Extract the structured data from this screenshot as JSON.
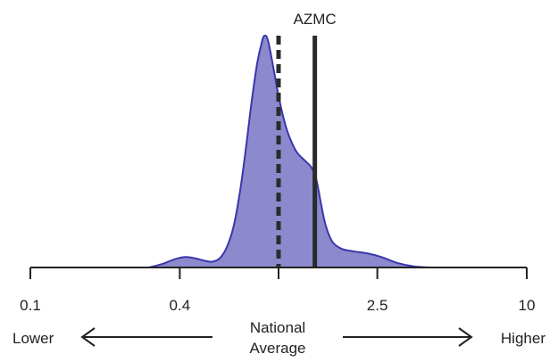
{
  "chart_data": {
    "type": "area",
    "scale": "log",
    "xlim": [
      0.1,
      10
    ],
    "ticks": [
      {
        "value": 0.1,
        "label": "0.1"
      },
      {
        "value": 0.4,
        "label": "0.4"
      },
      {
        "value": 1,
        "label": ""
      },
      {
        "value": 2.5,
        "label": "2.5"
      },
      {
        "value": 10,
        "label": "10"
      }
    ],
    "density": {
      "x": [
        0.3,
        0.34,
        0.38,
        0.42,
        0.46,
        0.5,
        0.54,
        0.58,
        0.62,
        0.66,
        0.7,
        0.74,
        0.78,
        0.82,
        0.86,
        0.88,
        0.9,
        0.92,
        0.95,
        1.0,
        1.05,
        1.1,
        1.18,
        1.28,
        1.36,
        1.42,
        1.48,
        1.55,
        1.65,
        1.8,
        2.0,
        2.3,
        2.6,
        3.0,
        3.5,
        4.1
      ],
      "y": [
        0.0,
        0.015,
        0.035,
        0.045,
        0.04,
        0.03,
        0.025,
        0.04,
        0.09,
        0.18,
        0.33,
        0.52,
        0.72,
        0.88,
        0.98,
        1.0,
        0.99,
        0.95,
        0.87,
        0.74,
        0.64,
        0.57,
        0.5,
        0.46,
        0.43,
        0.38,
        0.28,
        0.18,
        0.11,
        0.08,
        0.07,
        0.06,
        0.045,
        0.02,
        0.005,
        0.0
      ]
    },
    "reference_lines": [
      {
        "value": 1.0,
        "style": "dashed",
        "label": ""
      },
      {
        "value": 1.4,
        "style": "solid",
        "label": "AZMC"
      }
    ],
    "bottom_labels": {
      "left": "Lower",
      "center": [
        "National",
        "Average"
      ],
      "right": "Higher"
    },
    "colors": {
      "fill": "#8c89cc",
      "stroke": "#3a36ad",
      "axis": "#222222"
    }
  }
}
